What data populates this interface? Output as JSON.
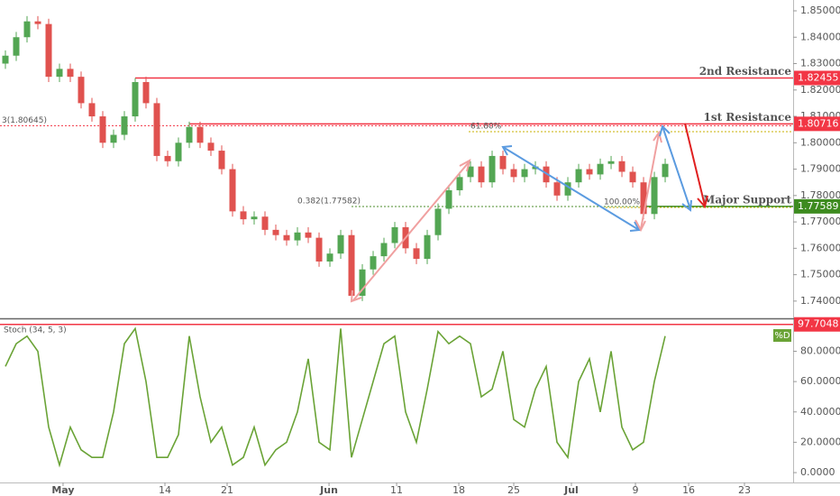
{
  "chart_data": [
    {
      "type": "candlestick",
      "x": [
        0,
        1,
        2,
        3,
        4,
        5,
        6,
        7,
        8,
        9,
        10,
        11,
        12,
        13,
        14,
        15,
        16,
        17,
        18,
        19,
        20,
        21,
        22,
        23,
        24,
        25,
        26,
        27,
        28,
        29,
        30,
        31,
        32,
        33,
        34,
        35,
        36,
        37,
        38,
        39,
        40,
        41,
        42,
        43,
        44,
        45,
        46,
        47,
        48,
        49,
        50,
        51,
        52,
        53,
        54,
        55,
        56,
        57,
        58,
        59,
        60,
        61
      ],
      "open": [
        1.83,
        1.833,
        1.84,
        1.846,
        1.845,
        1.825,
        1.828,
        1.825,
        1.815,
        1.81,
        1.8,
        1.803,
        1.81,
        1.823,
        1.815,
        1.795,
        1.793,
        1.8,
        1.806,
        1.8,
        1.797,
        1.79,
        1.774,
        1.771,
        1.772,
        1.767,
        1.765,
        1.763,
        1.766,
        1.764,
        1.755,
        1.758,
        1.765,
        1.742,
        1.752,
        1.757,
        1.762,
        1.768,
        1.76,
        1.756,
        1.765,
        1.775,
        1.782,
        1.787,
        1.791,
        1.785,
        1.795,
        1.79,
        1.787,
        1.79,
        1.791,
        1.785,
        1.78,
        1.785,
        1.79,
        1.788,
        1.792,
        1.793,
        1.789,
        1.785,
        1.773,
        1.787
      ],
      "high": [
        1.835,
        1.842,
        1.848,
        1.848,
        1.847,
        1.83,
        1.83,
        1.827,
        1.817,
        1.812,
        1.805,
        1.812,
        1.8245,
        1.825,
        1.817,
        1.797,
        1.802,
        1.808,
        1.808,
        1.802,
        1.799,
        1.792,
        1.776,
        1.774,
        1.774,
        1.769,
        1.767,
        1.768,
        1.768,
        1.766,
        1.76,
        1.767,
        1.767,
        1.754,
        1.759,
        1.764,
        1.77,
        1.77,
        1.762,
        1.767,
        1.777,
        1.784,
        1.789,
        1.793,
        1.793,
        1.797,
        1.797,
        1.792,
        1.792,
        1.793,
        1.793,
        1.787,
        1.787,
        1.792,
        1.792,
        1.794,
        1.795,
        1.795,
        1.791,
        1.787,
        1.789,
        1.794
      ],
      "low": [
        1.828,
        1.831,
        1.838,
        1.843,
        1.823,
        1.823,
        1.823,
        1.813,
        1.808,
        1.798,
        1.798,
        1.801,
        1.808,
        1.813,
        1.793,
        1.791,
        1.791,
        1.798,
        1.798,
        1.795,
        1.788,
        1.772,
        1.769,
        1.769,
        1.765,
        1.763,
        1.761,
        1.761,
        1.762,
        1.753,
        1.753,
        1.756,
        1.74,
        1.74,
        1.75,
        1.755,
        1.76,
        1.758,
        1.754,
        1.754,
        1.763,
        1.773,
        1.78,
        1.785,
        1.783,
        1.783,
        1.788,
        1.785,
        1.785,
        1.788,
        1.783,
        1.778,
        1.778,
        1.783,
        1.786,
        1.786,
        1.79,
        1.787,
        1.783,
        1.771,
        1.771,
        1.785
      ],
      "close": [
        1.833,
        1.84,
        1.846,
        1.845,
        1.825,
        1.828,
        1.825,
        1.815,
        1.81,
        1.8,
        1.803,
        1.81,
        1.823,
        1.815,
        1.795,
        1.793,
        1.8,
        1.806,
        1.8,
        1.797,
        1.79,
        1.774,
        1.771,
        1.772,
        1.767,
        1.765,
        1.763,
        1.766,
        1.764,
        1.755,
        1.758,
        1.765,
        1.742,
        1.752,
        1.757,
        1.762,
        1.768,
        1.76,
        1.756,
        1.765,
        1.775,
        1.782,
        1.787,
        1.791,
        1.785,
        1.795,
        1.79,
        1.787,
        1.79,
        1.791,
        1.785,
        1.78,
        1.785,
        1.79,
        1.788,
        1.792,
        1.793,
        1.789,
        1.785,
        1.773,
        1.787,
        1.792
      ],
      "up_color": "#53a653",
      "down_color": "#e0524f",
      "xlim": [
        -0.5,
        72.83
      ],
      "xticks": [
        {
          "value": 5.33,
          "label": "May"
        },
        {
          "value": 14.75,
          "label": "14"
        },
        {
          "value": 20.5,
          "label": "21"
        },
        {
          "value": 29.92,
          "label": "Jun"
        },
        {
          "value": 36.17,
          "label": "11"
        },
        {
          "value": 41.92,
          "label": "18"
        },
        {
          "value": 47,
          "label": "25"
        },
        {
          "value": 52.33,
          "label": "Jul"
        },
        {
          "value": 58.25,
          "label": "9"
        },
        {
          "value": 63.17,
          "label": "16"
        },
        {
          "value": 68.33,
          "label": "23"
        }
      ],
      "ylim": [
        1.7338,
        1.8541
      ],
      "yticks": [
        {
          "value": 1.74,
          "label": "1.74000"
        },
        {
          "value": 1.75,
          "label": "1.75000"
        },
        {
          "value": 1.76,
          "label": "1.76000"
        },
        {
          "value": 1.77,
          "label": "1.77000"
        },
        {
          "value": 1.78,
          "label": "1.78000"
        },
        {
          "value": 1.79,
          "label": "1.79000"
        },
        {
          "value": 1.8,
          "label": "1.80000"
        },
        {
          "value": 1.81,
          "label": "1.81000"
        },
        {
          "value": 1.82,
          "label": "1.82000"
        },
        {
          "value": 1.83,
          "label": "1.83000"
        },
        {
          "value": 1.84,
          "label": "1.84000"
        },
        {
          "value": 1.85,
          "label": "1.85000"
        }
      ],
      "levels": [
        {
          "name": "2nd Resistance",
          "value": 1.82455,
          "value_label": "1.82455",
          "color": "#f23645",
          "style": "solid"
        },
        {
          "name": "1st Resistance",
          "value": 1.80716,
          "value_label": "1.80716",
          "color": "#f23645",
          "style": "solid"
        },
        {
          "label": "3(1.80645)",
          "value": 1.80645,
          "color": "#f23645",
          "style": "dotted"
        },
        {
          "label": "61.80%",
          "value": 1.8042,
          "color": "#c9b200",
          "style": "dotted"
        },
        {
          "label": "0.382(1.77582)",
          "value": 1.77582,
          "color": "#4c8c2b",
          "style": "dotted"
        },
        {
          "label": "100.00%",
          "value": 1.7755,
          "color": "#c9b200",
          "style": "dotted"
        },
        {
          "name": "Major Support",
          "value": 1.77589,
          "value_label": "1.77589",
          "color": "#3d8b1f",
          "style": "solid"
        }
      ]
    },
    {
      "type": "line",
      "title": "Stoch (34, 5, 3)",
      "series": [
        {
          "name": "%D",
          "color": "#6aa336",
          "values": [
            70,
            85,
            90,
            80,
            30,
            5,
            30,
            15,
            10,
            10,
            40,
            85,
            95,
            60,
            10,
            10,
            25,
            90,
            50,
            20,
            30,
            5,
            10,
            30,
            5,
            15,
            20,
            40,
            75,
            20,
            15,
            95,
            10,
            35,
            60,
            85,
            90,
            40,
            20,
            55,
            93,
            85,
            90,
            85,
            50,
            55,
            80,
            35,
            30,
            55,
            70,
            20,
            10,
            60,
            75,
            40,
            80,
            30,
            15,
            20,
            60,
            90
          ]
        }
      ],
      "ylim": [
        -6.5,
        100.5
      ],
      "yticks": [
        {
          "value": 0,
          "label": "0.0000"
        },
        {
          "value": 20,
          "label": "20.0000"
        },
        {
          "value": 40,
          "label": "40.0000"
        },
        {
          "value": 60,
          "label": "60.0000"
        },
        {
          "value": 80,
          "label": "80.0000"
        }
      ],
      "level": {
        "value": 97.7048,
        "value_label": "97.7048",
        "color": "#f23645"
      }
    }
  ]
}
